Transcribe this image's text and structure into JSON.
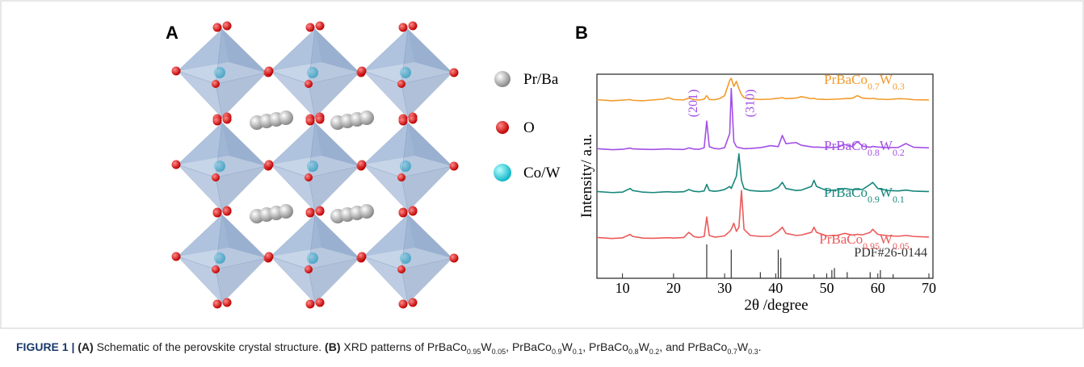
{
  "panel_a": {
    "label": "A",
    "legend": [
      "Pr/Ba",
      "O",
      "Co/W"
    ]
  },
  "chart_data": {
    "type": "line",
    "label": "B",
    "x_label": "2θ /degree",
    "y_label": "Intensity/ a.u.",
    "xlim": [
      5,
      70
    ],
    "ylim": [
      0,
      100
    ],
    "xticks": [
      10,
      20,
      30,
      40,
      50,
      60,
      70
    ],
    "x": [
      5,
      8,
      10,
      11.5,
      12,
      14,
      16,
      18,
      19,
      20,
      22,
      23,
      24,
      25,
      26,
      26.5,
      27,
      28,
      29,
      30,
      31,
      31.3,
      31.8,
      32.3,
      32.8,
      33.3,
      33.8,
      35,
      37,
      39,
      40.5,
      41.3,
      42,
      44,
      45,
      47,
      47.5,
      48,
      50,
      52,
      53.5,
      55,
      56,
      57,
      58.5,
      59,
      60,
      62,
      64,
      65.5,
      67,
      70
    ],
    "series": [
      {
        "name": "PrBaCo0.7W0.3",
        "color": "#f39a2a",
        "values": [
          87.5,
          87,
          87.3,
          87.6,
          87.2,
          87,
          87.4,
          87.8,
          88.5,
          87.6,
          87.4,
          88.3,
          87.6,
          87.3,
          87.8,
          89.5,
          87.6,
          87.5,
          88,
          89.5,
          97,
          98,
          94,
          96.5,
          93,
          90,
          88.5,
          88,
          87.6,
          87.8,
          88.2,
          88.5,
          88,
          88.3,
          89,
          88,
          88.2,
          87.8,
          87.6,
          87.8,
          88,
          88.2,
          89.5,
          88.3,
          88,
          88.2,
          87.8,
          87.6,
          88,
          87.9,
          87.5,
          87.4
        ]
      },
      {
        "name": "PrBaCo0.8W0.2",
        "color": "#a24fe6",
        "values": [
          63.5,
          63,
          63.2,
          63.8,
          63.4,
          63.2,
          63.1,
          63.3,
          63.4,
          63.2,
          63.1,
          63.9,
          63.3,
          63.2,
          64,
          77,
          64.5,
          63.6,
          63.4,
          64,
          71,
          93,
          67,
          64.5,
          64,
          63.8,
          63.5,
          63.6,
          64,
          65,
          64.5,
          70,
          66,
          66.5,
          65.2,
          64.4,
          64.2,
          64.3,
          64,
          64.2,
          65.5,
          64.5,
          67,
          64.8,
          64.2,
          64.6,
          64.3,
          64,
          64.1,
          66,
          64.2,
          63.9
        ]
      },
      {
        "name": "PrBaCo0.9W0.1",
        "color": "#17877b",
        "values": [
          42.5,
          42,
          42.2,
          44,
          43,
          42.2,
          42,
          42.3,
          42.4,
          42.2,
          42.4,
          43.5,
          42.6,
          42.4,
          42.8,
          46,
          43,
          42.6,
          42.9,
          43.5,
          45,
          44,
          47,
          50,
          61,
          48,
          44,
          43,
          42.6,
          42.8,
          44.5,
          47,
          44,
          43,
          43.2,
          45,
          48,
          45,
          43,
          43.3,
          44,
          43.4,
          43.6,
          43.5,
          46,
          47,
          44,
          43,
          42.8,
          43.2,
          42.7,
          42.5
        ]
      },
      {
        "name": "PrBaCo0.95W0.05",
        "color": "#ec5a5a",
        "values": [
          20,
          19.5,
          19.8,
          21.5,
          20.5,
          19.7,
          19.6,
          19.8,
          19.9,
          19.7,
          20,
          22.5,
          20.4,
          20,
          20.5,
          30,
          21,
          20.2,
          20.4,
          20.8,
          23,
          24,
          27,
          23,
          25,
          43,
          24,
          21,
          20.5,
          20.6,
          23,
          25,
          22,
          21,
          21.2,
          22.5,
          25,
          22.5,
          20.8,
          21,
          22,
          21.2,
          21.5,
          21.3,
          22.5,
          24,
          21.5,
          20.8,
          20.6,
          21,
          20.5,
          20.2
        ]
      }
    ],
    "reference": {
      "name": "PDF#26-0144",
      "color": "#333333",
      "x": [
        26.5,
        31.3,
        37,
        40.5,
        41,
        47.5,
        51,
        51.5,
        54,
        58.5,
        60.5,
        63
      ],
      "values": [
        16.6,
        14,
        3,
        14,
        10,
        2,
        4,
        5,
        3,
        3,
        4,
        2
      ]
    },
    "annotations": [
      {
        "text": "(201)",
        "x": 26.5,
        "color": "#a24fe6"
      },
      {
        "text": "(310)",
        "x": 31.3,
        "color": "#a24fe6"
      }
    ]
  },
  "caption": {
    "figure": "FIGURE 1 |",
    "a_label": "(A)",
    "a_text": "Schematic of the perovskite crystal structure.",
    "b_label": "(B)",
    "b_text": "XRD patterns of PrBaCo0.95W0.05, PrBaCo0.9W0.1, PrBaCo0.8W0.2, and PrBaCo0.7W0.3."
  }
}
